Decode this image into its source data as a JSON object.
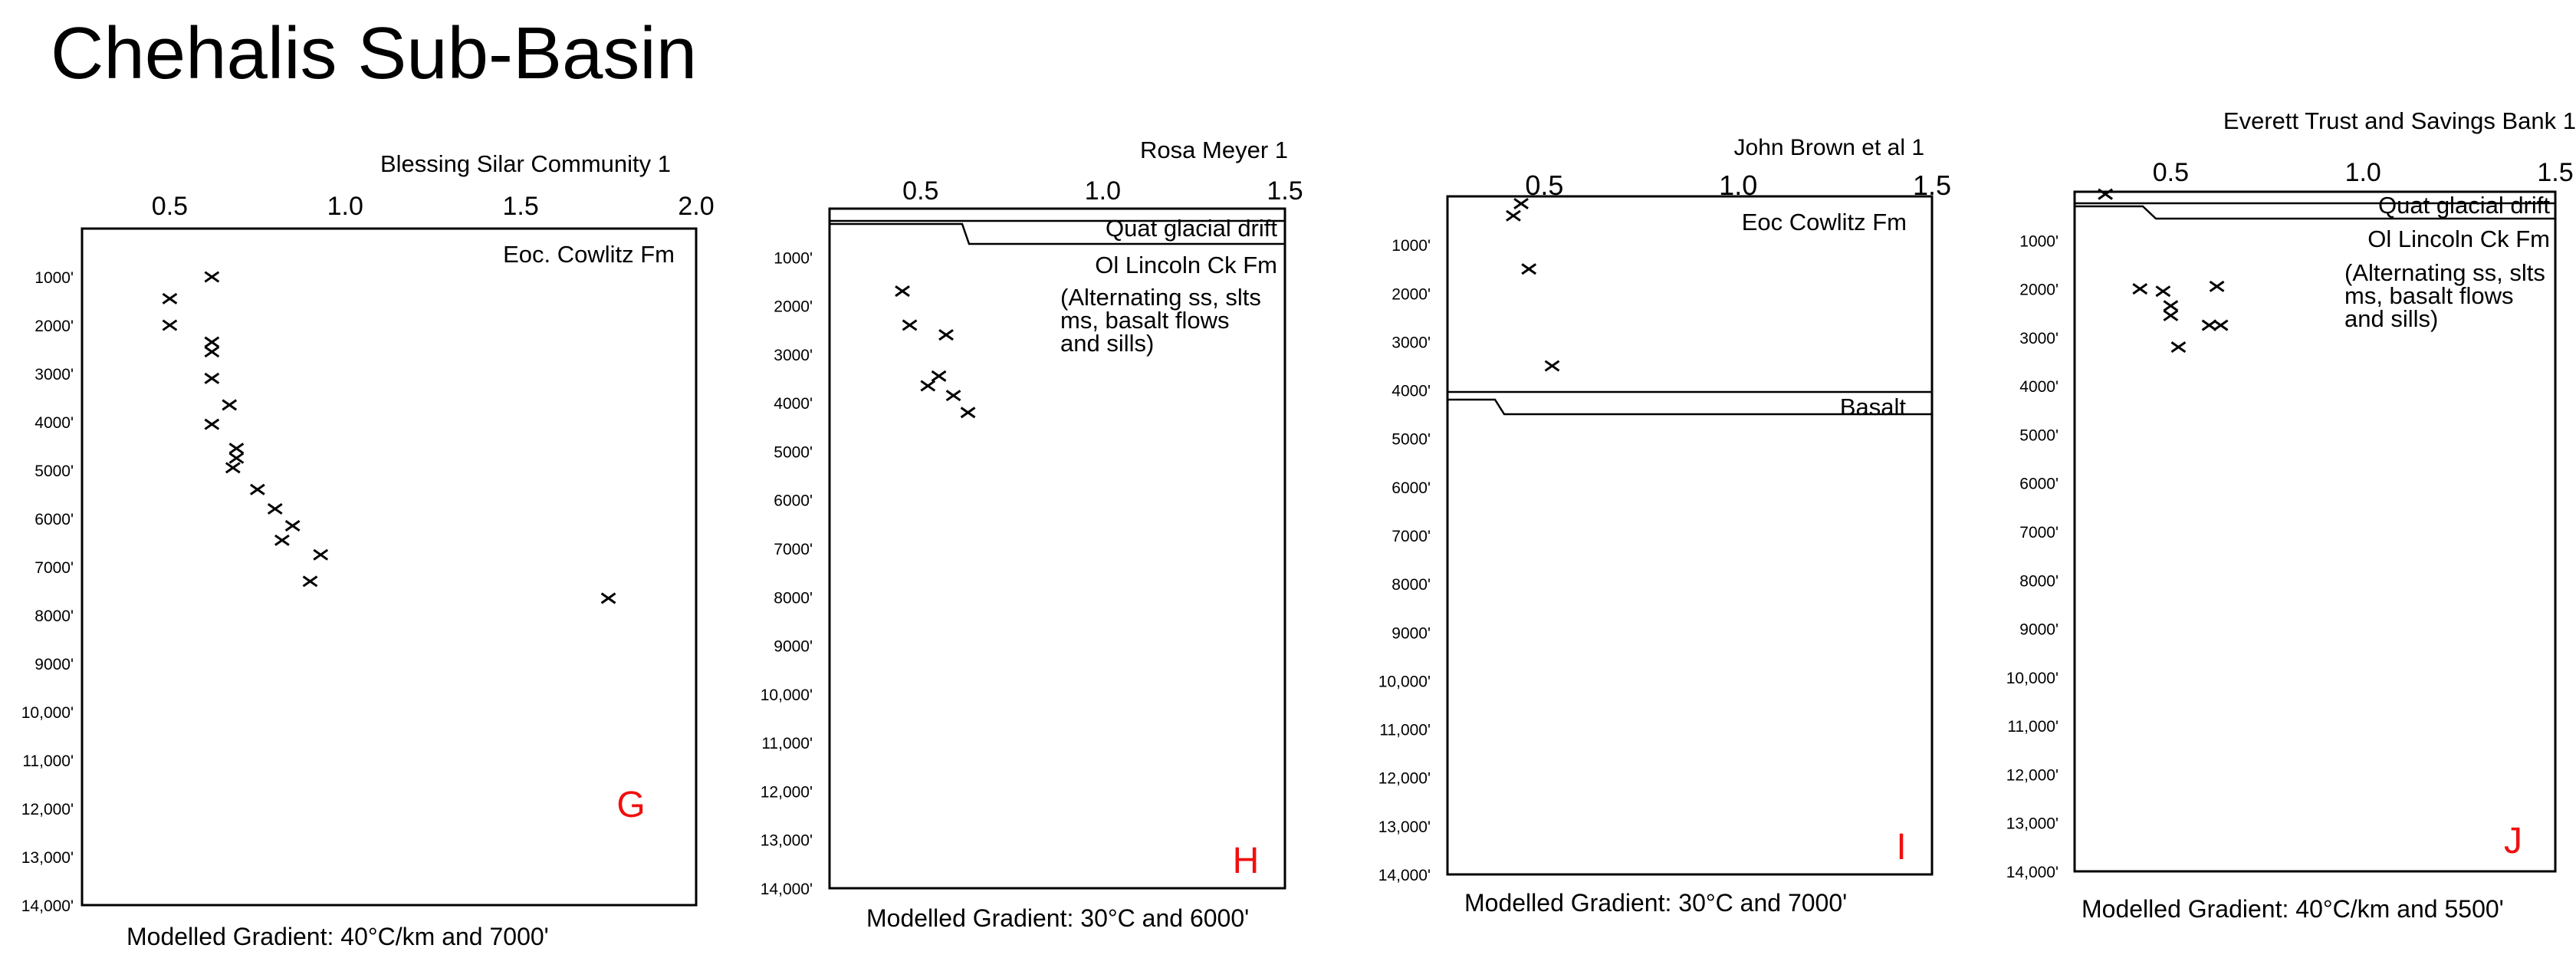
{
  "page": {
    "title": "Chehalis Sub-Basin"
  },
  "chart_data": [
    {
      "type": "scatter",
      "title": "Blessing Silar Community 1",
      "panel_letter": "G",
      "formations": [
        "Eoc. Cowlitz Fm"
      ],
      "footer": "Modelled Gradient: 40°C/km and 7000'",
      "xticks": [
        "0.5",
        "1.0",
        "1.5",
        "2.0"
      ],
      "yticks": [
        "1000'",
        "2000'",
        "3000'",
        "4000'",
        "5000'",
        "6000'",
        "7000'",
        "8000'",
        "9000'",
        "10,000'",
        "11,000'",
        "12,000'",
        "13,000'",
        "14,000'"
      ],
      "xlim": [
        0.25,
        2.0
      ],
      "ylim": [
        0,
        14000
      ],
      "points": [
        {
          "x": 0.62,
          "y": 1000
        },
        {
          "x": 0.5,
          "y": 1450
        },
        {
          "x": 0.5,
          "y": 2000
        },
        {
          "x": 0.62,
          "y": 2350
        },
        {
          "x": 0.62,
          "y": 2550
        },
        {
          "x": 0.62,
          "y": 3100
        },
        {
          "x": 0.67,
          "y": 3650
        },
        {
          "x": 0.62,
          "y": 4050
        },
        {
          "x": 0.69,
          "y": 4550
        },
        {
          "x": 0.69,
          "y": 4750
        },
        {
          "x": 0.68,
          "y": 4950
        },
        {
          "x": 0.75,
          "y": 5400
        },
        {
          "x": 0.8,
          "y": 5800
        },
        {
          "x": 0.85,
          "y": 6150
        },
        {
          "x": 0.82,
          "y": 6450
        },
        {
          "x": 0.93,
          "y": 6750
        },
        {
          "x": 0.9,
          "y": 7300
        },
        {
          "x": 1.75,
          "y": 7650
        }
      ]
    },
    {
      "type": "scatter",
      "title": "Rosa Meyer 1",
      "panel_letter": "H",
      "formations": [
        "Quat glacial drift",
        "Ol Lincoln Ck Fm",
        "(Alternating ss, slts",
        "ms, basalt flows",
        "and sills)"
      ],
      "footer": "Modelled Gradient: 30°C and 6000'",
      "xticks": [
        "0.5",
        "1.0",
        "1.5"
      ],
      "yticks": [
        "1000'",
        "2000'",
        "3000'",
        "4000'",
        "5000'",
        "6000'",
        "7000'",
        "8000'",
        "9000'",
        "10,000'",
        "11,000'",
        "12,000'",
        "13,000'",
        "14,000'"
      ],
      "xlim": [
        0.25,
        1.5
      ],
      "ylim": [
        0,
        14000
      ],
      "points": [
        {
          "x": 0.45,
          "y": 1700
        },
        {
          "x": 0.47,
          "y": 2400
        },
        {
          "x": 0.57,
          "y": 2600
        },
        {
          "x": 0.55,
          "y": 3450
        },
        {
          "x": 0.52,
          "y": 3650
        },
        {
          "x": 0.59,
          "y": 3850
        },
        {
          "x": 0.63,
          "y": 4200
        }
      ]
    },
    {
      "type": "scatter",
      "title": "John Brown et al 1",
      "panel_letter": "I",
      "formations": [
        "Eoc Cowlitz Fm",
        "Basalt"
      ],
      "footer": "Modelled Gradient: 30°C and 7000'",
      "xticks": [
        "0.5",
        "1.0",
        "1.5"
      ],
      "yticks": [
        "1000'",
        "2000'",
        "3000'",
        "4000'",
        "5000'",
        "6000'",
        "7000'",
        "8000'",
        "9000'",
        "10,000'",
        "11,000'",
        "12,000'",
        "13,000'",
        "14,000'"
      ],
      "xlim": [
        0.25,
        1.5
      ],
      "ylim": [
        0,
        14000
      ],
      "points": [
        {
          "x": 0.42,
          "y": 400
        },
        {
          "x": 0.44,
          "y": 150
        },
        {
          "x": 0.46,
          "y": 1500
        },
        {
          "x": 0.52,
          "y": 3500
        }
      ]
    },
    {
      "type": "scatter",
      "title": "Everett Trust and Savings Bank 1",
      "panel_letter": "J",
      "formations": [
        "Quat glacial drift",
        "Ol Lincoln Ck Fm",
        "(Alternating ss, slts",
        "ms, basalt flows",
        "and sills)"
      ],
      "footer": "Modelled Gradient: 40°C/km and 5500'",
      "xticks": [
        "0.5",
        "1.0",
        "1.5"
      ],
      "yticks": [
        "1000'",
        "2000'",
        "3000'",
        "4000'",
        "5000'",
        "6000'",
        "7000'",
        "8000'",
        "9000'",
        "10,000'",
        "11,000'",
        "12,000'",
        "13,000'",
        "14,000'"
      ],
      "xlim": [
        0.25,
        1.5
      ],
      "ylim": [
        0,
        14000
      ],
      "points": [
        {
          "x": 0.33,
          "y": 50
        },
        {
          "x": 0.42,
          "y": 2000
        },
        {
          "x": 0.48,
          "y": 2050
        },
        {
          "x": 0.5,
          "y": 2350
        },
        {
          "x": 0.5,
          "y": 2550
        },
        {
          "x": 0.62,
          "y": 1950
        },
        {
          "x": 0.6,
          "y": 2750
        },
        {
          "x": 0.63,
          "y": 2750
        },
        {
          "x": 0.52,
          "y": 3200
        }
      ]
    }
  ]
}
